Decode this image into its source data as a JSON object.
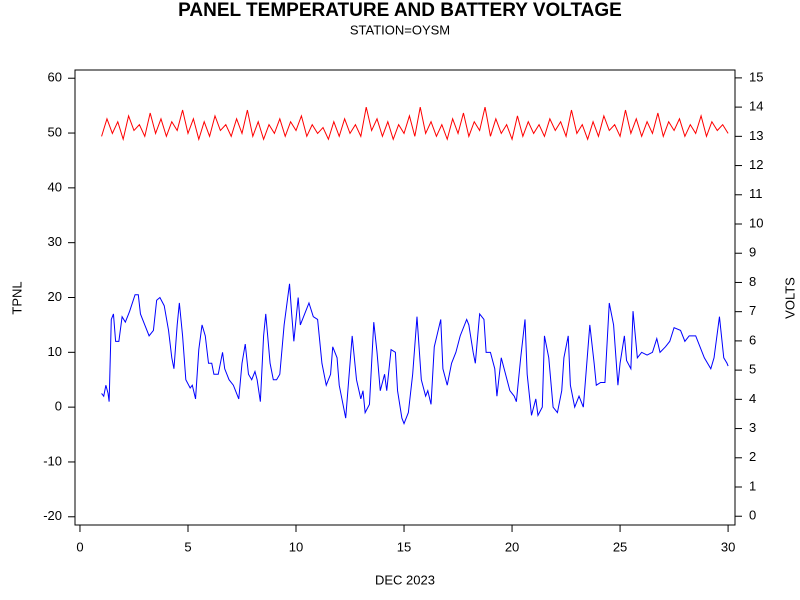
{
  "chart_data": {
    "type": "line",
    "title": "PANEL TEMPERATURE AND BATTERY VOLTAGE",
    "subtitle": "STATION=OYSM",
    "x_label": "DEC 2023",
    "y_label": "TPNL",
    "y2_label": "VOLTS",
    "xlim": [
      -0.23,
      30.32
    ],
    "xticks": [
      0,
      5,
      10,
      15,
      20,
      25,
      30
    ],
    "ylim": [
      -21.5,
      61.5
    ],
    "yticks": [
      -20,
      -10,
      0,
      10,
      20,
      30,
      40,
      50,
      60
    ],
    "y2lim": [
      -0.3,
      15.27
    ],
    "y2ticks": [
      0,
      1,
      2,
      3,
      4,
      5,
      6,
      7,
      8,
      9,
      10,
      11,
      12,
      13,
      14,
      15
    ],
    "series": [
      {
        "name": "TPNL",
        "color": "#0000ff",
        "axis": "y",
        "x": [
          1.0,
          1.1,
          1.2,
          1.3,
          1.35,
          1.45,
          1.55,
          1.65,
          1.8,
          1.95,
          2.1,
          2.3,
          2.55,
          2.7,
          2.8,
          3.0,
          3.2,
          3.4,
          3.55,
          3.7,
          3.9,
          4.1,
          4.25,
          4.35,
          4.5,
          4.6,
          4.75,
          4.9,
          5.1,
          5.2,
          5.35,
          5.5,
          5.65,
          5.8,
          5.95,
          6.1,
          6.2,
          6.4,
          6.6,
          6.7,
          6.9,
          7.1,
          7.2,
          7.35,
          7.5,
          7.65,
          7.8,
          7.95,
          8.1,
          8.2,
          8.35,
          8.5,
          8.6,
          8.8,
          8.95,
          9.1,
          9.25,
          9.45,
          9.7,
          9.8,
          9.9,
          10.1,
          10.2,
          10.4,
          10.6,
          10.8,
          11.0,
          11.2,
          11.4,
          11.6,
          11.7,
          11.9,
          12.0,
          12.1,
          12.3,
          12.5,
          12.6,
          12.8,
          13.0,
          13.1,
          13.2,
          13.4,
          13.6,
          13.75,
          13.9,
          14.1,
          14.2,
          14.4,
          14.6,
          14.7,
          14.9,
          15.0,
          15.2,
          15.4,
          15.6,
          15.8,
          16.0,
          16.1,
          16.25,
          16.4,
          16.7,
          16.8,
          17.0,
          17.2,
          17.4,
          17.6,
          17.9,
          18.0,
          18.2,
          18.3,
          18.5,
          18.7,
          18.8,
          19.0,
          19.2,
          19.3,
          19.5,
          19.7,
          19.9,
          20.1,
          20.2,
          20.4,
          20.6,
          20.7,
          20.9,
          21.1,
          21.2,
          21.4,
          21.5,
          21.7,
          21.9,
          22.1,
          22.3,
          22.4,
          22.6,
          22.7,
          22.9,
          23.1,
          23.3,
          23.5,
          23.6,
          23.8,
          23.9,
          24.1,
          24.3,
          24.5,
          24.7,
          24.9,
          25.0,
          25.2,
          25.3,
          25.5,
          25.6,
          25.8,
          26.0,
          26.25,
          26.5,
          26.7,
          26.85,
          27.1,
          27.3,
          27.5,
          27.8,
          28.0,
          28.2,
          28.5,
          28.7,
          28.9,
          29.2,
          29.35,
          29.6,
          29.8,
          29.95,
          30.0
        ],
        "values": [
          2.5,
          2,
          4,
          2.5,
          1,
          16,
          17,
          12,
          12,
          16.5,
          15.5,
          17.5,
          20.5,
          20.5,
          17,
          15,
          13,
          14,
          19.5,
          20,
          18.5,
          14,
          9,
          7,
          15,
          19,
          13,
          5,
          3.5,
          4,
          1.5,
          10.5,
          15,
          13,
          8,
          8,
          6,
          6,
          10,
          7,
          5,
          4,
          3,
          1.5,
          8,
          11.5,
          6,
          5,
          6.5,
          5,
          1,
          13,
          17,
          8,
          5,
          5,
          6,
          15,
          22.5,
          17,
          12,
          20,
          15,
          17,
          19,
          16.5,
          16,
          8,
          4,
          6,
          11,
          9,
          4,
          2,
          -2,
          8,
          13,
          5,
          1.5,
          3,
          -1,
          0.5,
          15.5,
          10,
          3,
          6,
          3,
          10.5,
          10,
          3,
          -2,
          -3,
          -1,
          6,
          16.5,
          5,
          2,
          3,
          0.5,
          11,
          16,
          7,
          4,
          8,
          10,
          13,
          16,
          15,
          10,
          8,
          17,
          16,
          10,
          10,
          7,
          2,
          9,
          6,
          3,
          2,
          1,
          9,
          16,
          6,
          -1.5,
          1.5,
          -1.5,
          0,
          13,
          9,
          0,
          -1,
          3,
          9,
          13,
          4,
          0,
          2,
          0,
          10,
          15,
          8,
          4,
          4.5,
          4.5,
          19,
          15,
          4,
          8,
          13,
          8.5,
          7,
          17.5,
          9,
          10,
          9.5,
          10,
          12.5,
          10,
          11,
          12,
          14.5,
          14,
          12,
          13,
          13,
          11,
          9,
          7,
          9,
          16.5,
          9,
          8,
          7.5
        ]
      },
      {
        "name": "VOLTS",
        "color": "#ff0000",
        "axis": "y2",
        "x": [
          1,
          1.25,
          1.5,
          1.75,
          2,
          2.25,
          2.5,
          2.75,
          3,
          3.25,
          3.5,
          3.75,
          4,
          4.25,
          4.5,
          4.75,
          5,
          5.25,
          5.5,
          5.75,
          6,
          6.25,
          6.5,
          6.75,
          7,
          7.25,
          7.5,
          7.75,
          8,
          8.25,
          8.5,
          8.75,
          9,
          9.25,
          9.5,
          9.75,
          10,
          10.25,
          10.5,
          10.75,
          11,
          11.25,
          11.5,
          11.75,
          12,
          12.25,
          12.5,
          12.75,
          13,
          13.25,
          13.5,
          13.75,
          14,
          14.25,
          14.5,
          14.75,
          15,
          15.25,
          15.5,
          15.75,
          16,
          16.25,
          16.5,
          16.75,
          17,
          17.25,
          17.5,
          17.75,
          18,
          18.25,
          18.5,
          18.75,
          19,
          19.25,
          19.5,
          19.75,
          20,
          20.25,
          20.5,
          20.75,
          21,
          21.25,
          21.5,
          21.75,
          22,
          22.25,
          22.5,
          22.75,
          23,
          23.25,
          23.5,
          23.75,
          24,
          24.25,
          24.5,
          24.75,
          25,
          25.25,
          25.5,
          25.75,
          26,
          26.25,
          26.5,
          26.75,
          27,
          27.25,
          27.5,
          27.75,
          28,
          28.25,
          28.5,
          28.75,
          29,
          29.25,
          29.5,
          29.75,
          30
        ],
        "values": [
          13.0,
          13.6,
          13.1,
          13.5,
          12.9,
          13.7,
          13.2,
          13.4,
          13.0,
          13.8,
          13.1,
          13.6,
          13.0,
          13.5,
          13.2,
          13.9,
          13.1,
          13.6,
          12.9,
          13.5,
          13.0,
          13.7,
          13.2,
          13.4,
          13.0,
          13.6,
          13.1,
          13.9,
          13.0,
          13.5,
          12.9,
          13.4,
          13.1,
          13.6,
          13.0,
          13.5,
          13.2,
          13.7,
          13.0,
          13.4,
          13.1,
          13.3,
          12.9,
          13.5,
          13.0,
          13.6,
          13.1,
          13.4,
          13.0,
          14.0,
          13.2,
          13.6,
          13.0,
          13.5,
          12.9,
          13.4,
          13.1,
          13.7,
          13.0,
          14.0,
          13.1,
          13.5,
          13.0,
          13.4,
          12.9,
          13.6,
          13.1,
          13.8,
          13.0,
          13.5,
          13.2,
          14.0,
          13.0,
          13.6,
          13.1,
          13.4,
          12.9,
          13.7,
          13.0,
          13.5,
          13.1,
          13.4,
          13.0,
          13.6,
          13.2,
          13.5,
          13.0,
          13.9,
          13.1,
          13.4,
          12.9,
          13.5,
          13.0,
          13.7,
          13.2,
          13.4,
          13.0,
          13.9,
          13.1,
          13.6,
          13.0,
          13.5,
          13.1,
          13.8,
          13.0,
          13.5,
          13.2,
          13.6,
          13.0,
          13.4,
          13.1,
          13.7,
          13.0,
          13.5,
          13.2,
          13.4,
          13.1
        ]
      }
    ]
  }
}
